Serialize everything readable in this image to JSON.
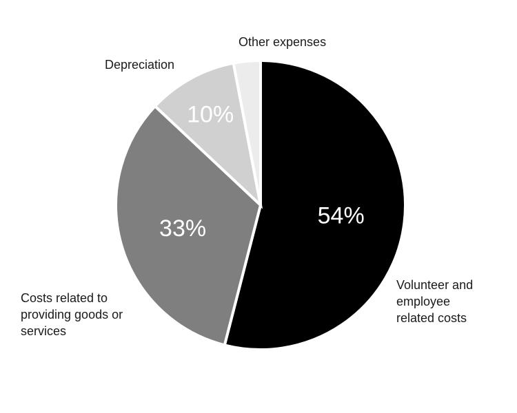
{
  "chart_data": {
    "type": "pie",
    "slices": [
      {
        "label": [
          "Volunteer and",
          "employee",
          "related costs"
        ],
        "value": 54,
        "value_label": "54%",
        "color": "#000000",
        "label_color": "#ffffff"
      },
      {
        "label": [
          "Costs related to",
          "providing goods or",
          "services"
        ],
        "value": 33,
        "value_label": "33%",
        "color": "#7f7f7f",
        "label_color": "#ffffff"
      },
      {
        "label": [
          "Depreciation"
        ],
        "value": 10,
        "value_label": "10%",
        "color": "#d0d0d0",
        "label_color": "#ffffff"
      },
      {
        "label": [
          "Other expenses"
        ],
        "value": 3,
        "value_label": "",
        "color": "#ececec",
        "label_color": "#ffffff"
      }
    ],
    "start_angle": "12 o'clock",
    "direction": "clockwise",
    "legend": "none"
  }
}
